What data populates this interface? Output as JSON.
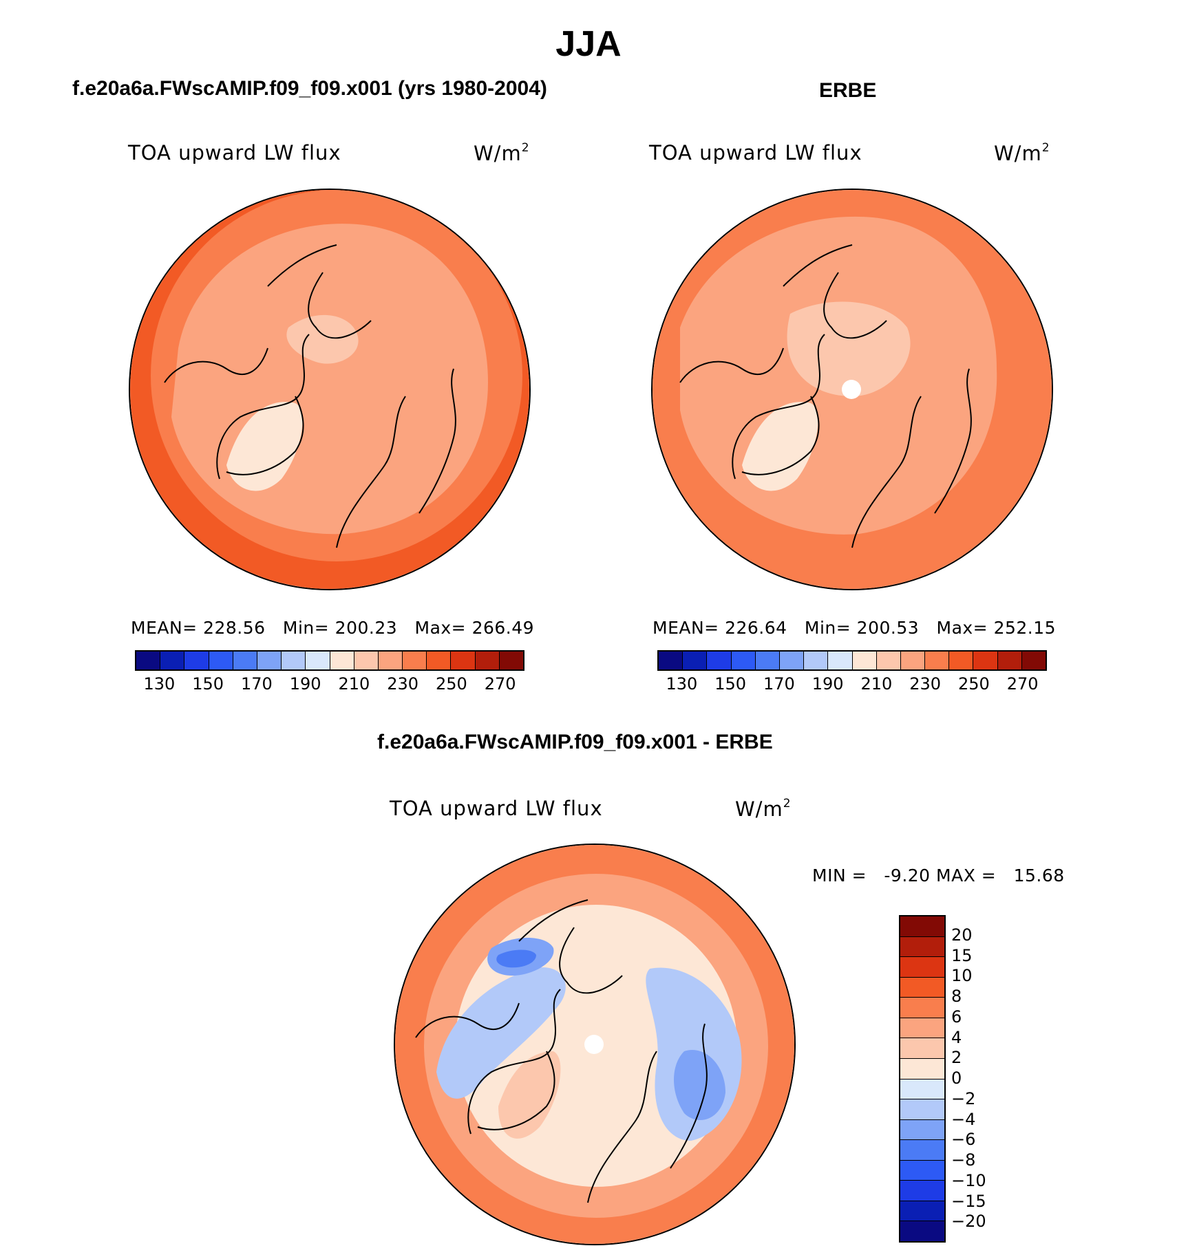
{
  "main_title": "JJA",
  "panels": {
    "model": {
      "title": "f.e20a6a.FWscAMIP.f09_f09.x001 (yrs 1980-2004)",
      "variable": "TOA upward LW flux",
      "units_base": "W/m",
      "units_exp": "2",
      "stats": {
        "mean_label": "MEAN=",
        "mean": "228.56",
        "min_label": "Min=",
        "min": "200.23",
        "max_label": "Max=",
        "max": "266.49"
      }
    },
    "obs": {
      "title": "ERBE",
      "variable": "TOA upward LW flux",
      "units_base": "W/m",
      "units_exp": "2",
      "stats": {
        "mean_label": "MEAN=",
        "mean": "226.64",
        "min_label": "Min=",
        "min": "200.53",
        "max_label": "Max=",
        "max": "252.15"
      }
    },
    "diff": {
      "title": "f.e20a6a.FWscAMIP.f09_f09.x001 - ERBE",
      "variable": "TOA upward LW flux",
      "units_base": "W/m",
      "units_exp": "2",
      "stats": {
        "min_label": "MIN =",
        "min": "-9.20",
        "max_label": "MAX =",
        "max": "15.68"
      }
    }
  },
  "chart_data": [
    {
      "type": "heatmap",
      "projection": "north-polar-stereographic",
      "title": "f.e20a6a.FWscAMIP.f09_f09.x001 (yrs 1980-2004)",
      "variable": "TOA upward LW flux",
      "units": "W/m2",
      "mean": 228.56,
      "min": 200.23,
      "max": 266.49,
      "colorbar_ticks": [
        "130",
        "150",
        "170",
        "190",
        "210",
        "230",
        "250",
        "270"
      ],
      "colorbar_colors": [
        "#0a0a82",
        "#0a1fb4",
        "#1e3ce6",
        "#2d5af5",
        "#4b7bf5",
        "#7ea3f7",
        "#b2c9f9",
        "#d9e8fb",
        "#fde7d6",
        "#fcc7ad",
        "#fba47f",
        "#f97e4d",
        "#f25a25",
        "#dc3512",
        "#b21e0b",
        "#820a05"
      ],
      "fields": {
        "edge_fill": "#f25a25",
        "mid_fill": "#fba47f",
        "center_fill": "#fcc7ad"
      }
    },
    {
      "type": "heatmap",
      "projection": "north-polar-stereographic",
      "title": "ERBE",
      "variable": "TOA upward LW flux",
      "units": "W/m2",
      "mean": 226.64,
      "min": 200.53,
      "max": 252.15,
      "colorbar_ticks": [
        "130",
        "150",
        "170",
        "190",
        "210",
        "230",
        "250",
        "270"
      ],
      "colorbar_colors": [
        "#0a0a82",
        "#0a1fb4",
        "#1e3ce6",
        "#2d5af5",
        "#4b7bf5",
        "#7ea3f7",
        "#b2c9f9",
        "#d9e8fb",
        "#fde7d6",
        "#fcc7ad",
        "#fba47f",
        "#f97e4d",
        "#f25a25",
        "#dc3512",
        "#b21e0b",
        "#820a05"
      ],
      "fields": {
        "edge_fill": "#f97e4d",
        "mid_fill": "#fba47f",
        "center_fill": "#fcc7ad"
      }
    },
    {
      "type": "heatmap",
      "projection": "north-polar-stereographic",
      "title": "f.e20a6a.FWscAMIP.f09_f09.x001 - ERBE",
      "variable": "TOA upward LW flux",
      "units": "W/m2",
      "min": -9.2,
      "max": 15.68,
      "colorbar_ticks": [
        "20",
        "15",
        "10",
        "8",
        "6",
        "4",
        "2",
        "0",
        "−2",
        "−4",
        "−6",
        "−8",
        "−10",
        "−15",
        "−20"
      ],
      "colorbar_colors": [
        "#820a05",
        "#b21e0b",
        "#dc3512",
        "#f25a25",
        "#f97e4d",
        "#fba47f",
        "#fcc7ad",
        "#fde7d6",
        "#d9e8fb",
        "#b2c9f9",
        "#7ea3f7",
        "#4b7bf5",
        "#2d5af5",
        "#1e3ce6",
        "#0a1fb4",
        "#0a0a82"
      ]
    }
  ]
}
